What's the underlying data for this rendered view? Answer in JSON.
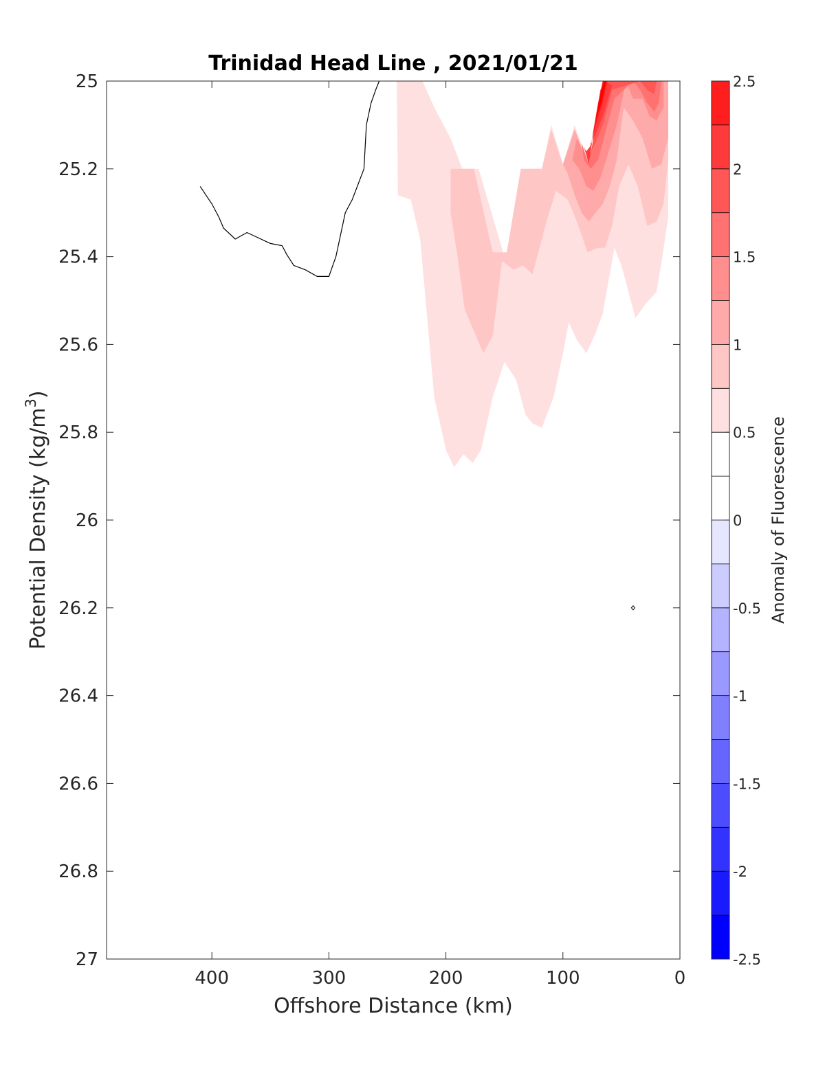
{
  "chart_data": {
    "type": "contourf",
    "title": "Trinidad Head Line , 2021/01/21",
    "xlabel": "Offshore Distance (km)",
    "ylabel": "Potential Density (kg/m",
    "ylabel_superscript": "3",
    "ylabel_suffix": ")",
    "colorbar_label": "Anomaly of Fluorescence",
    "xlim": [
      490,
      0
    ],
    "ylim": [
      25,
      27
    ],
    "x_reversed": true,
    "y_reversed": true,
    "x_ticks": [
      400,
      300,
      200,
      100,
      0
    ],
    "y_ticks": [
      25,
      25.2,
      25.4,
      25.6,
      25.8,
      26,
      26.2,
      26.4,
      26.6,
      26.8,
      27
    ],
    "y_tick_labels": [
      "25",
      "25.2",
      "25.4",
      "25.6",
      "25.8",
      "26",
      "26.2",
      "26.4",
      "26.6",
      "26.8",
      "27"
    ],
    "colorbar": {
      "range": [
        -2.5,
        2.5
      ],
      "levels": [
        -2.5,
        -2.25,
        -2,
        -1.75,
        -1.5,
        -1.25,
        -1,
        -0.75,
        -0.5,
        -0.25,
        0,
        0.25,
        0.5,
        0.75,
        1,
        1.25,
        1.5,
        1.75,
        2,
        2.25,
        2.5
      ],
      "colors": [
        "#0000ff",
        "#1a1aff",
        "#3333ff",
        "#4d4dff",
        "#6666ff",
        "#8080ff",
        "#9999ff",
        "#b3b3ff",
        "#ccccff",
        "#e6e6ff",
        "#ffffff",
        "#ffffff",
        "#ffe0e0",
        "#ffc6c6",
        "#ffaaaa",
        "#ff8e8e",
        "#ff7272",
        "#ff5656",
        "#ff3a3a",
        "#ff1e1e",
        "#ff0000"
      ],
      "ticks": [
        2.5,
        2,
        1.5,
        1,
        0.5,
        0,
        -0.5,
        -1,
        -1.5,
        -2,
        -2.5
      ],
      "tick_labels": [
        "2.5",
        "2",
        "1.5",
        "1",
        "0.5",
        "0",
        "-0.5",
        "-1",
        "-1.5",
        "-2",
        "-2.5"
      ]
    },
    "regions": [
      {
        "level": 0.25,
        "color": "#ffe0e0",
        "points": [
          [
            242,
            25
          ],
          [
            220,
            25
          ],
          [
            210,
            25.06
          ],
          [
            196,
            25.13
          ],
          [
            186,
            25.2
          ],
          [
            172,
            25.2
          ],
          [
            150,
            25.4
          ],
          [
            140,
            25.4
          ],
          [
            130,
            25.2
          ],
          [
            118,
            25.2
          ],
          [
            110,
            25.1
          ],
          [
            100,
            25.19
          ],
          [
            90,
            25.1
          ],
          [
            78,
            25.19
          ],
          [
            66,
            25.02
          ],
          [
            62,
            25
          ],
          [
            10,
            25
          ],
          [
            10,
            25.31
          ],
          [
            15,
            25.4
          ],
          [
            20,
            25.48
          ],
          [
            30,
            25.51
          ],
          [
            38,
            25.54
          ],
          [
            50,
            25.42
          ],
          [
            56,
            25.38
          ],
          [
            66,
            25.53
          ],
          [
            73,
            25.58
          ],
          [
            80,
            25.62
          ],
          [
            88,
            25.59
          ],
          [
            95,
            25.55
          ],
          [
            100,
            25.62
          ],
          [
            108,
            25.72
          ],
          [
            118,
            25.79
          ],
          [
            126,
            25.78
          ],
          [
            132,
            25.76
          ],
          [
            140,
            25.68
          ],
          [
            150,
            25.64
          ],
          [
            160,
            25.72
          ],
          [
            170,
            25.84
          ],
          [
            177,
            25.87
          ],
          [
            185,
            25.85
          ],
          [
            193,
            25.88
          ],
          [
            200,
            25.84
          ],
          [
            210,
            25.72
          ],
          [
            218,
            25.48
          ],
          [
            222,
            25.36
          ],
          [
            230,
            25.27
          ],
          [
            241,
            25.26
          ]
        ]
      },
      {
        "level": 0.5,
        "color": "#ffc6c6",
        "points": [
          [
            196,
            25.2
          ],
          [
            176,
            25.2
          ],
          [
            160,
            25.39
          ],
          [
            148,
            25.39
          ],
          [
            136,
            25.2
          ],
          [
            118,
            25.2
          ],
          [
            110,
            25.11
          ],
          [
            100,
            25.19
          ],
          [
            90,
            25.11
          ],
          [
            78,
            25.19
          ],
          [
            66,
            25.02
          ],
          [
            62,
            25
          ],
          [
            10,
            25
          ],
          [
            10,
            25.18
          ],
          [
            14,
            25.28
          ],
          [
            20,
            25.32
          ],
          [
            28,
            25.33
          ],
          [
            36,
            25.24
          ],
          [
            44,
            25.19
          ],
          [
            52,
            25.24
          ],
          [
            58,
            25.33
          ],
          [
            64,
            25.38
          ],
          [
            70,
            25.38
          ],
          [
            79,
            25.39
          ],
          [
            88,
            25.32
          ],
          [
            96,
            25.27
          ],
          [
            106,
            25.25
          ],
          [
            114,
            25.32
          ],
          [
            120,
            25.38
          ],
          [
            126,
            25.44
          ],
          [
            134,
            25.42
          ],
          [
            142,
            25.43
          ],
          [
            152,
            25.41
          ],
          [
            160,
            25.58
          ],
          [
            168,
            25.62
          ],
          [
            176,
            25.57
          ],
          [
            184,
            25.52
          ],
          [
            190,
            25.4
          ],
          [
            196,
            25.3
          ]
        ]
      },
      {
        "level": 0.75,
        "color": "#ffaaaa",
        "points": [
          [
            90,
            25.11
          ],
          [
            78,
            25.19
          ],
          [
            66,
            25.02
          ],
          [
            62,
            25
          ],
          [
            10,
            25
          ],
          [
            10,
            25.13
          ],
          [
            16,
            25.19
          ],
          [
            24,
            25.2
          ],
          [
            32,
            25.13
          ],
          [
            40,
            25.09
          ],
          [
            48,
            25.06
          ],
          [
            54,
            25.18
          ],
          [
            60,
            25.24
          ],
          [
            66,
            25.28
          ],
          [
            72,
            25.3
          ],
          [
            78,
            25.32
          ],
          [
            84,
            25.3
          ],
          [
            90,
            25.26
          ],
          [
            96,
            25.21
          ],
          [
            100,
            25.19
          ]
        ]
      },
      {
        "level": 1.0,
        "color": "#ff8e8e",
        "points": [
          [
            88,
            25.13
          ],
          [
            78,
            25.19
          ],
          [
            66,
            25.02
          ],
          [
            62,
            25
          ],
          [
            14,
            25
          ],
          [
            14,
            25.06
          ],
          [
            20,
            25.09
          ],
          [
            26,
            25.08
          ],
          [
            32,
            25.04
          ],
          [
            40,
            25.04
          ],
          [
            46,
            25
          ],
          [
            54,
            25.1
          ],
          [
            62,
            25.17
          ],
          [
            68,
            25.22
          ],
          [
            74,
            25.25
          ],
          [
            80,
            25.24
          ],
          [
            86,
            25.2
          ],
          [
            92,
            25.18
          ]
        ]
      },
      {
        "level": 1.25,
        "color": "#ff7272",
        "points": [
          [
            84,
            25.14
          ],
          [
            78,
            25.19
          ],
          [
            66,
            25.02
          ],
          [
            63,
            25
          ],
          [
            16,
            25
          ],
          [
            18,
            25.05
          ],
          [
            22,
            25.07
          ],
          [
            28,
            25.05
          ],
          [
            34,
            25.02
          ],
          [
            40,
            25
          ],
          [
            56,
            25.04
          ],
          [
            64,
            25.12
          ],
          [
            70,
            25.18
          ],
          [
            76,
            25.2
          ],
          [
            82,
            25.18
          ]
        ]
      },
      {
        "level": 1.5,
        "color": "#ff5656",
        "points": [
          [
            82,
            25.15
          ],
          [
            78,
            25.19
          ],
          [
            66,
            25.02
          ],
          [
            63,
            25
          ],
          [
            20,
            25
          ],
          [
            22,
            25.03
          ],
          [
            28,
            25.02
          ],
          [
            34,
            25
          ],
          [
            58,
            25.02
          ],
          [
            66,
            25.1
          ],
          [
            72,
            25.14
          ],
          [
            78,
            25.17
          ]
        ]
      },
      {
        "level": 1.75,
        "color": "#ff3a3a",
        "points": [
          [
            80,
            25.16
          ],
          [
            78,
            25.19
          ],
          [
            68,
            25.02
          ],
          [
            64,
            25
          ],
          [
            58,
            25.01
          ],
          [
            66,
            25.08
          ],
          [
            72,
            25.12
          ],
          [
            77,
            25.15
          ]
        ]
      },
      {
        "level": 2.0,
        "color": "#ff1e1e",
        "points": [
          [
            77,
            25.16
          ],
          [
            70,
            25.05
          ],
          [
            66,
            25
          ],
          [
            62,
            25
          ],
          [
            67,
            25.06
          ],
          [
            72,
            25.1
          ],
          [
            76,
            25.14
          ]
        ]
      },
      {
        "level": 2.25,
        "color": "#ff0000",
        "points": [
          [
            73,
            25.1
          ],
          [
            68,
            25.03
          ],
          [
            65,
            25
          ],
          [
            63,
            25
          ],
          [
            67,
            25.05
          ],
          [
            71,
            25.08
          ]
        ]
      }
    ],
    "contour_line": {
      "points": [
        [
          410,
          25.24
        ],
        [
          400,
          25.28
        ],
        [
          394,
          25.31
        ],
        [
          390,
          25.335
        ],
        [
          380,
          25.36
        ],
        [
          370,
          25.345
        ],
        [
          350,
          25.37
        ],
        [
          340,
          25.375
        ],
        [
          336,
          25.395
        ],
        [
          330,
          25.42
        ],
        [
          320,
          25.43
        ],
        [
          310,
          25.445
        ],
        [
          300,
          25.445
        ],
        [
          294,
          25.4
        ],
        [
          290,
          25.35
        ],
        [
          286,
          25.3
        ],
        [
          280,
          25.27
        ],
        [
          270,
          25.2
        ],
        [
          268,
          25.1
        ],
        [
          264,
          25.05
        ],
        [
          260,
          25.02
        ],
        [
          257,
          25
        ]
      ]
    },
    "contour_marker": {
      "x": 40,
      "y": 26.2
    }
  }
}
